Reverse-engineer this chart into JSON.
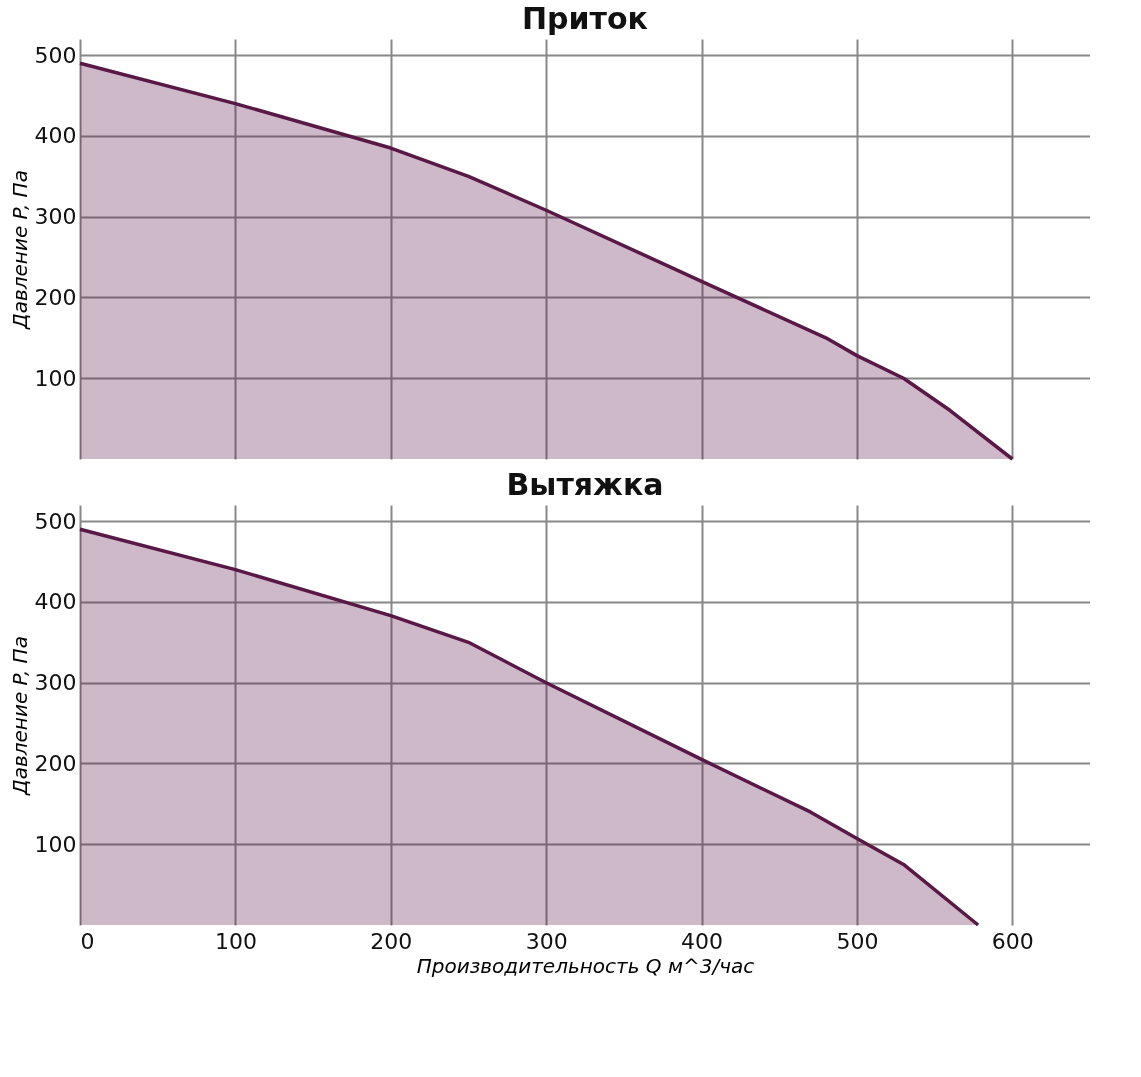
{
  "chart_data": [
    {
      "type": "area",
      "title": "Приток",
      "ylabel": "Давление P, Па",
      "x": [
        0,
        100,
        200,
        250,
        300,
        400,
        480,
        500,
        530,
        560,
        600
      ],
      "series": [
        {
          "color": "#5a1846",
          "values": [
            490,
            440,
            385,
            350,
            308,
            220,
            150,
            128,
            100,
            60,
            0
          ]
        }
      ],
      "xlim": [
        0,
        650
      ],
      "ylim": [
        0,
        520
      ],
      "xticks": [
        0,
        100,
        200,
        300,
        400,
        500,
        600
      ],
      "yticks": [
        100,
        200,
        300,
        400,
        500
      ],
      "grid": true,
      "tick_labels": "y"
    },
    {
      "type": "area",
      "title": "Вытяжка",
      "xlabel": "Производительность Q м^3/час",
      "ylabel": "Давление P, Па",
      "x": [
        0,
        100,
        200,
        250,
        300,
        400,
        470,
        500,
        530,
        578
      ],
      "series": [
        {
          "color": "#5a1846",
          "values": [
            490,
            440,
            383,
            350,
            300,
            205,
            140,
            107,
            75,
            0
          ]
        }
      ],
      "xlim": [
        0,
        650
      ],
      "ylim": [
        0,
        520
      ],
      "xticks": [
        0,
        100,
        200,
        300,
        400,
        500,
        600
      ],
      "yticks": [
        100,
        200,
        300,
        400,
        500
      ],
      "grid": true
    }
  ]
}
